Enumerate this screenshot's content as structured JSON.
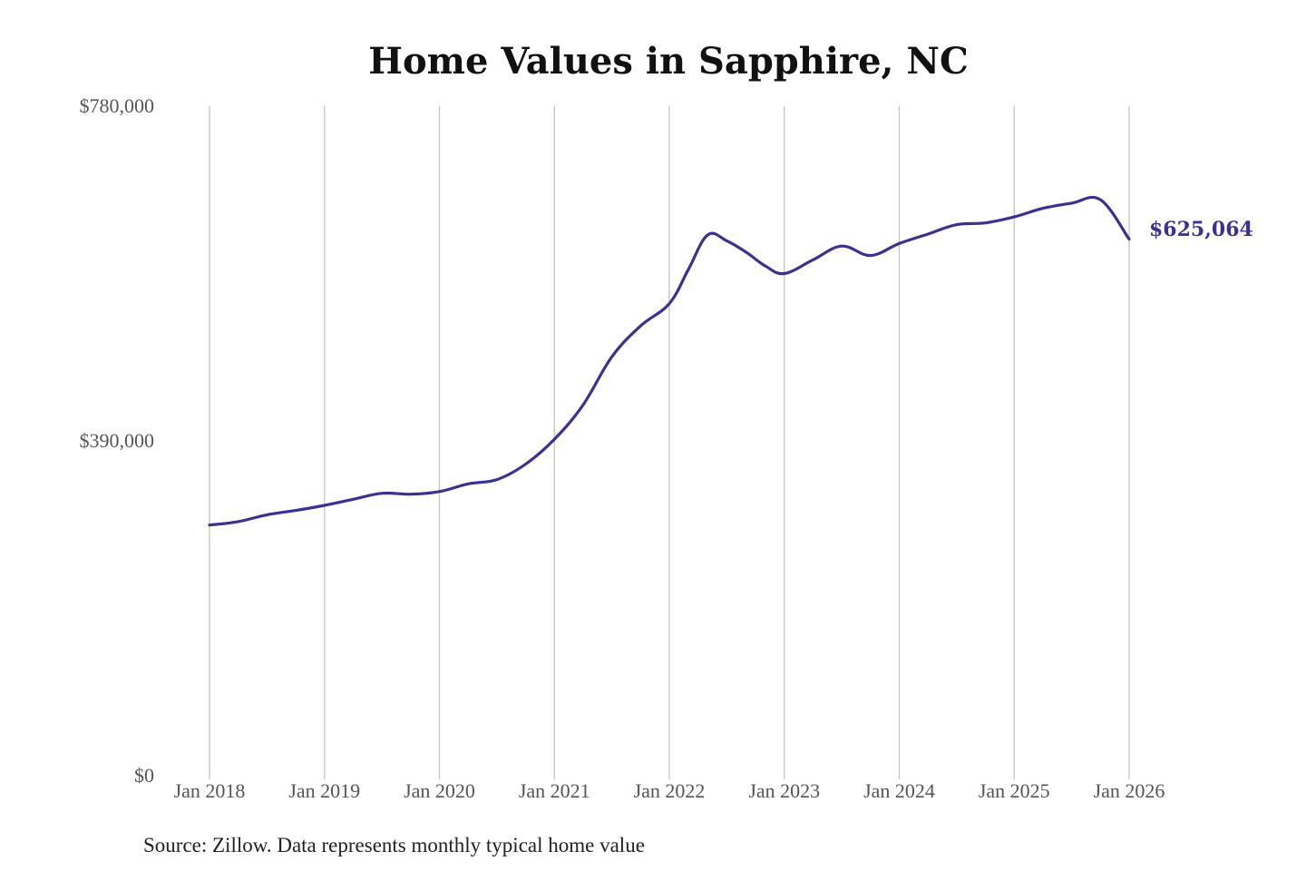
{
  "chart_data": {
    "type": "line",
    "title": "Home Values in Sapphire, NC",
    "xlabel": "",
    "ylabel": "",
    "source": "Source: Zillow. Data represents monthly typical home value",
    "ylim": [
      0,
      780000
    ],
    "y_ticks": [
      {
        "value": 0,
        "label": "$0"
      },
      {
        "value": 390000,
        "label": "$390,000"
      },
      {
        "value": 780000,
        "label": "$780,000"
      }
    ],
    "x_ticks": [
      {
        "value": "2018-01",
        "label": "Jan 2018"
      },
      {
        "value": "2019-01",
        "label": "Jan 2019"
      },
      {
        "value": "2020-01",
        "label": "Jan 2020"
      },
      {
        "value": "2021-01",
        "label": "Jan 2021"
      },
      {
        "value": "2022-01",
        "label": "Jan 2022"
      },
      {
        "value": "2023-01",
        "label": "Jan 2023"
      },
      {
        "value": "2024-01",
        "label": "Jan 2024"
      },
      {
        "value": "2025-01",
        "label": "Jan 2025"
      },
      {
        "value": "2026-01",
        "label": "Jan 2026"
      }
    ],
    "xlim": [
      "2018-01",
      "2026-01"
    ],
    "grid": {
      "vertical": true,
      "horizontal": false
    },
    "colors": {
      "line": "#3a3290",
      "grid": "#c4c4c4",
      "end_label": "#3a3290"
    },
    "end_label": "$625,064",
    "series": [
      {
        "x": [
          "2018-01",
          "2018-04",
          "2018-07",
          "2018-10",
          "2019-01",
          "2019-04",
          "2019-07",
          "2019-10",
          "2020-01",
          "2020-04",
          "2020-07",
          "2020-10",
          "2021-01",
          "2021-04",
          "2021-07",
          "2021-10",
          "2022-01",
          "2022-03",
          "2022-05",
          "2022-07",
          "2022-09",
          "2022-11",
          "2023-01",
          "2023-04",
          "2023-07",
          "2023-10",
          "2024-01",
          "2024-04",
          "2024-07",
          "2024-10",
          "2025-01",
          "2025-04",
          "2025-07",
          "2025-10",
          "2026-01"
        ],
        "values": [
          292000,
          296000,
          304000,
          309000,
          315000,
          322000,
          329000,
          328000,
          331000,
          340000,
          345000,
          363000,
          392000,
          432000,
          488000,
          524000,
          550000,
          590000,
          630000,
          623000,
          610000,
          594000,
          585000,
          601000,
          617000,
          606000,
          620000,
          631000,
          642000,
          644000,
          651000,
          661000,
          667000,
          671000,
          625064
        ]
      }
    ]
  }
}
